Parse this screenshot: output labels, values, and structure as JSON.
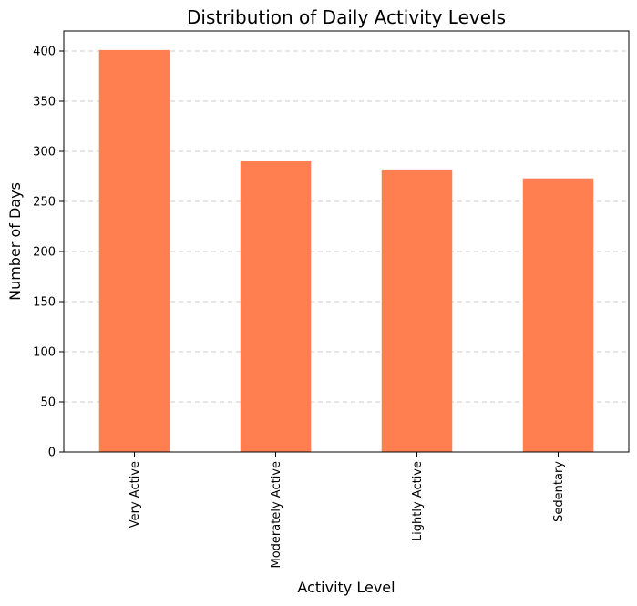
{
  "chart_data": {
    "type": "bar",
    "title": "Distribution of Daily Activity Levels",
    "xlabel": "Activity Level",
    "ylabel": "Number of Days",
    "categories": [
      "Very Active",
      "Moderately Active",
      "Lightly Active",
      "Sedentary"
    ],
    "values": [
      401,
      290,
      281,
      273
    ],
    "ylim": [
      0,
      420
    ],
    "yticks": [
      0,
      50,
      100,
      150,
      200,
      250,
      300,
      350,
      400
    ],
    "grid": "y-dashed",
    "bar_color": "#FF7F50"
  }
}
